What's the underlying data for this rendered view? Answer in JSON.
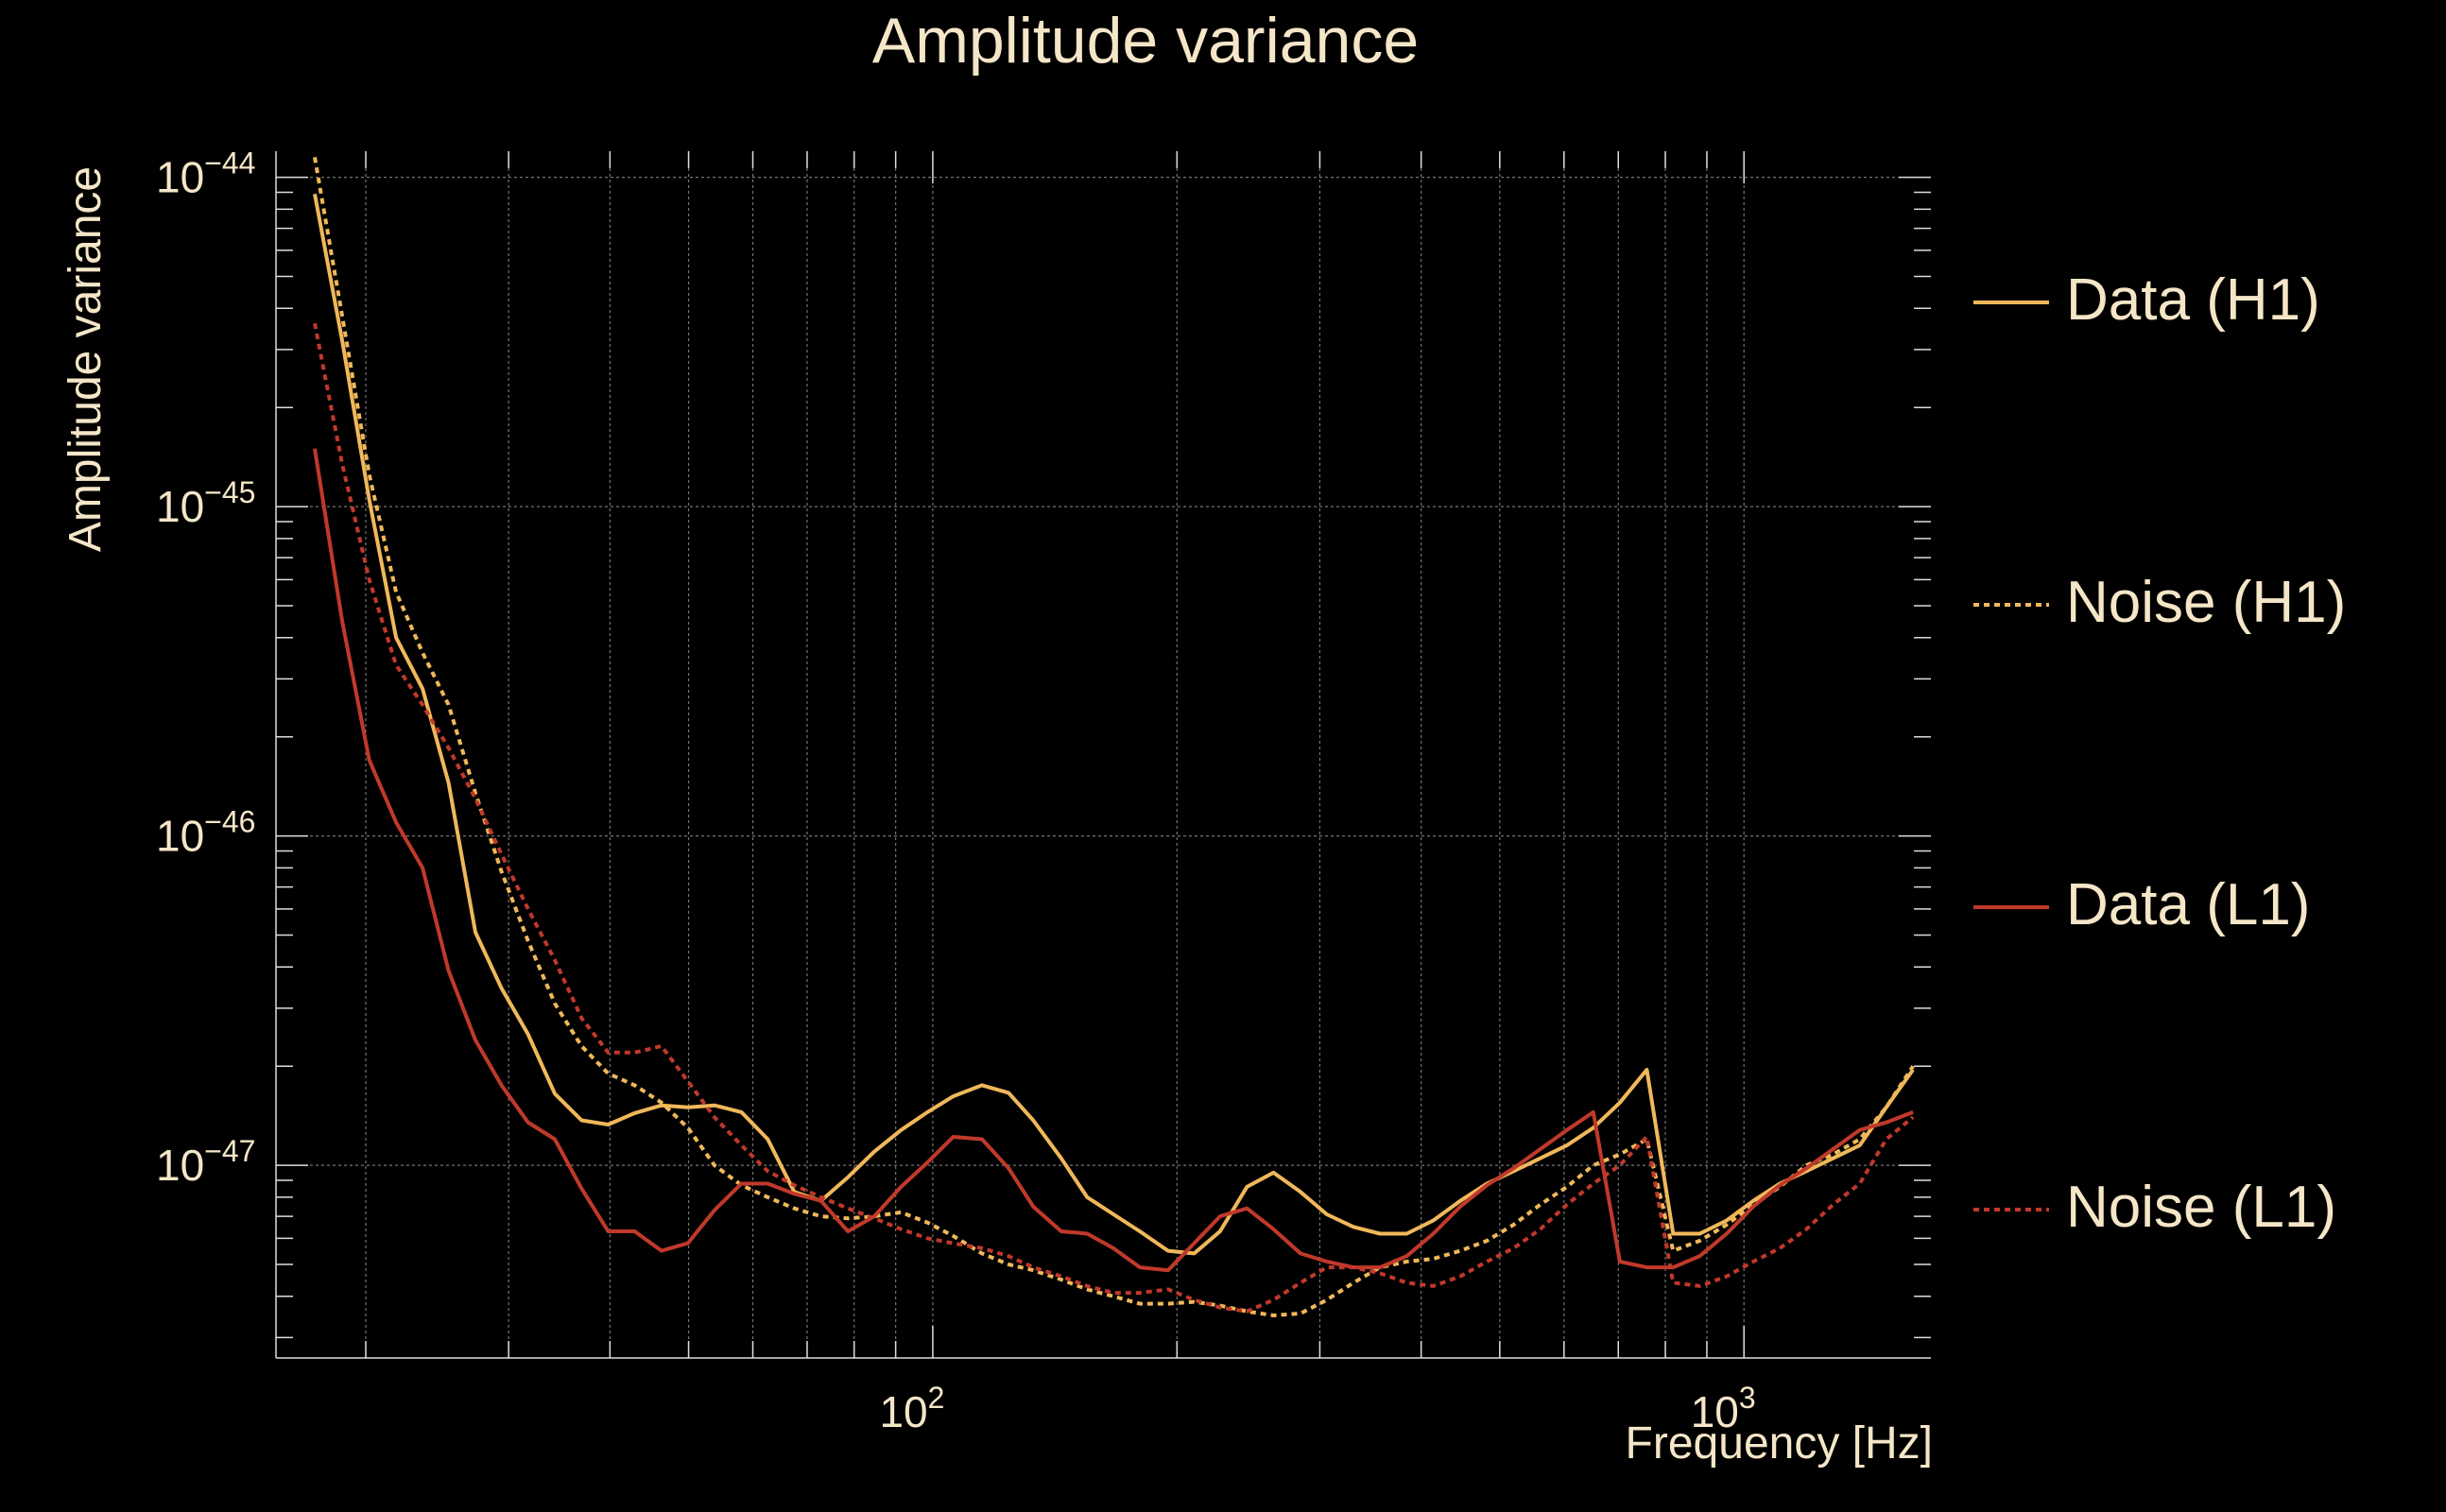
{
  "chart_data": {
    "type": "line",
    "title": "Amplitude variance",
    "xlabel": "Frequency [Hz]",
    "ylabel": "Amplitude variance",
    "xscale": "log",
    "yscale": "log",
    "xlim": [
      15.5,
      1700
    ],
    "ylim": [
      2.6e-48,
      1.2e-44
    ],
    "grid": true,
    "legend_position": "right",
    "xtick_labels": [
      {
        "base": "10",
        "exp": "2",
        "value": 100
      },
      {
        "base": "10",
        "exp": "3",
        "value": 1000
      }
    ],
    "ytick_labels": [
      {
        "base": "10",
        "exp": "−44",
        "value": 1e-44
      },
      {
        "base": "10",
        "exp": "−45",
        "value": 1e-45
      },
      {
        "base": "10",
        "exp": "−46",
        "value": 1e-46
      },
      {
        "base": "10",
        "exp": "−47",
        "value": 1e-47
      }
    ],
    "series": [
      {
        "name": "Data (H1)",
        "color": "#f0b85a",
        "dash": "solid",
        "x": [
          17.3,
          18.7,
          20.2,
          21.8,
          23.5,
          25.3,
          27.3,
          29.4,
          31.7,
          34.2,
          36.9,
          39.8,
          42.9,
          46.3,
          49.9,
          53.8,
          58.1,
          62.6,
          67.5,
          72.8,
          78.6,
          84.7,
          91.4,
          98.5,
          106,
          115,
          124,
          133,
          144,
          155,
          167,
          180,
          195,
          210,
          226,
          244,
          263,
          284,
          306,
          330,
          356,
          384,
          414,
          447,
          482,
          520,
          561,
          605,
          652,
          703,
          759,
          818,
          882,
          952,
          1027,
          1107,
          1194,
          1288,
          1389,
          1498,
          1616
        ],
        "y": [
          8.9e-45,
          3.2e-45,
          1.05e-45,
          4e-46,
          2.8e-46,
          1.45e-46,
          5.1e-47,
          3.45e-47,
          2.5e-47,
          1.65e-47,
          1.37e-47,
          1.33e-47,
          1.44e-47,
          1.52e-47,
          1.5e-47,
          1.52e-47,
          1.45e-47,
          1.2e-47,
          8.3e-48,
          7.8e-48,
          9.2e-48,
          1.1e-47,
          1.28e-47,
          1.45e-47,
          1.62e-47,
          1.75e-47,
          1.66e-47,
          1.37e-47,
          1.05e-47,
          8e-48,
          7.1e-48,
          6.3e-48,
          5.5e-48,
          5.4e-48,
          6.3e-48,
          8.6e-48,
          9.5e-48,
          8.3e-48,
          7.1e-48,
          6.5e-48,
          6.2e-48,
          6.2e-48,
          6.8e-48,
          7.8e-48,
          8.8e-48,
          9.6e-48,
          1.05e-47,
          1.15e-47,
          1.3e-47,
          1.55e-47,
          1.95e-47,
          6.2e-48,
          6.2e-48,
          6.8e-48,
          7.8e-48,
          8.8e-48,
          9.6e-48,
          1.05e-47,
          1.15e-47,
          1.5e-47,
          1.95e-47
        ]
      },
      {
        "name": "Noise (H1)",
        "color": "#f0b85a",
        "dash": "dotted",
        "x": [
          17.3,
          18.7,
          20.2,
          21.8,
          23.5,
          25.3,
          27.3,
          29.4,
          31.7,
          34.2,
          36.9,
          39.8,
          42.9,
          46.3,
          49.9,
          53.8,
          58.1,
          62.6,
          67.5,
          72.8,
          78.6,
          84.7,
          91.4,
          98.5,
          106,
          115,
          124,
          133,
          144,
          155,
          167,
          180,
          195,
          210,
          226,
          244,
          263,
          284,
          306,
          330,
          356,
          384,
          414,
          447,
          482,
          520,
          561,
          605,
          652,
          703,
          759,
          818,
          882,
          952,
          1027,
          1107,
          1194,
          1288,
          1389,
          1498,
          1616
        ],
        "y": [
          1.15e-44,
          3.8e-45,
          1.25e-45,
          5.5e-46,
          3.6e-46,
          2.5e-46,
          1.35e-46,
          7.8e-47,
          4.8e-47,
          3.1e-47,
          2.3e-47,
          1.9e-47,
          1.75e-47,
          1.55e-47,
          1.3e-47,
          1e-47,
          8.7e-48,
          8e-48,
          7.4e-48,
          7e-48,
          6.9e-48,
          7e-48,
          7.2e-48,
          6.7e-48,
          6.1e-48,
          5.4e-48,
          5e-48,
          4.8e-48,
          4.5e-48,
          4.2e-48,
          4e-48,
          3.8e-48,
          3.8e-48,
          3.85e-48,
          3.75e-48,
          3.6e-48,
          3.5e-48,
          3.55e-48,
          3.9e-48,
          4.4e-48,
          4.9e-48,
          5.1e-48,
          5.2e-48,
          5.5e-48,
          5.9e-48,
          6.6e-48,
          7.6e-48,
          8.6e-48,
          1e-47,
          1.08e-47,
          1.2e-47,
          5.5e-48,
          5.9e-48,
          6.6e-48,
          7.6e-48,
          8.6e-48,
          1e-47,
          1.08e-47,
          1.2e-47,
          1.5e-47,
          2e-47
        ]
      },
      {
        "name": "Data (L1)",
        "color": "#c0392b",
        "dash": "solid",
        "x": [
          17.3,
          18.7,
          20.2,
          21.8,
          23.5,
          25.3,
          27.3,
          29.4,
          31.7,
          34.2,
          36.9,
          39.8,
          42.9,
          46.3,
          49.9,
          53.8,
          58.1,
          62.6,
          67.5,
          72.8,
          78.6,
          84.7,
          91.4,
          98.5,
          106,
          115,
          124,
          133,
          144,
          155,
          167,
          180,
          195,
          210,
          226,
          244,
          263,
          284,
          306,
          330,
          356,
          384,
          414,
          447,
          482,
          520,
          561,
          605,
          652,
          703,
          759,
          818,
          882,
          952,
          1027,
          1107,
          1194,
          1288,
          1389,
          1498,
          1616
        ],
        "y": [
          1.5e-45,
          4.5e-46,
          1.7e-46,
          1.1e-46,
          8e-47,
          3.9e-47,
          2.4e-47,
          1.75e-47,
          1.35e-47,
          1.2e-47,
          8.5e-48,
          6.3e-48,
          6.3e-48,
          5.5e-48,
          5.8e-48,
          7.3e-48,
          8.8e-48,
          8.8e-48,
          8.2e-48,
          7.8e-48,
          6.3e-48,
          7e-48,
          8.6e-48,
          1.02e-47,
          1.22e-47,
          1.2e-47,
          9.8e-48,
          7.5e-48,
          6.3e-48,
          6.2e-48,
          5.6e-48,
          4.9e-48,
          4.8e-48,
          5.8e-48,
          7e-48,
          7.4e-48,
          6.4e-48,
          5.4e-48,
          5.1e-48,
          4.9e-48,
          4.9e-48,
          5.3e-48,
          6.2e-48,
          7.5e-48,
          8.7e-48,
          9.8e-48,
          1.12e-47,
          1.28e-47,
          1.45e-47,
          5.1e-48,
          4.9e-48,
          4.9e-48,
          5.3e-48,
          6.2e-48,
          7.5e-48,
          8.7e-48,
          9.8e-48,
          1.12e-47,
          1.28e-47,
          1.35e-47,
          1.45e-47
        ]
      },
      {
        "name": "Noise (L1)",
        "color": "#c0392b",
        "dash": "dotted",
        "x": [
          17.3,
          18.7,
          20.2,
          21.8,
          23.5,
          25.3,
          27.3,
          29.4,
          31.7,
          34.2,
          36.9,
          39.8,
          42.9,
          46.3,
          49.9,
          53.8,
          58.1,
          62.6,
          67.5,
          72.8,
          78.6,
          84.7,
          91.4,
          98.5,
          106,
          115,
          124,
          133,
          144,
          155,
          167,
          180,
          195,
          210,
          226,
          244,
          263,
          284,
          306,
          330,
          356,
          384,
          414,
          447,
          482,
          520,
          561,
          605,
          652,
          703,
          759,
          818,
          882,
          952,
          1027,
          1107,
          1194,
          1288,
          1389,
          1498,
          1616
        ],
        "y": [
          3.6e-45,
          1.35e-45,
          6e-46,
          3.3e-46,
          2.5e-46,
          1.85e-46,
          1.3e-46,
          8.8e-47,
          6e-47,
          4.2e-47,
          2.8e-47,
          2.2e-47,
          2.2e-47,
          2.3e-47,
          1.8e-47,
          1.4e-47,
          1.15e-47,
          9.6e-48,
          8.7e-48,
          8e-48,
          7.4e-48,
          6.9e-48,
          6.4e-48,
          6e-48,
          5.8e-48,
          5.6e-48,
          5.3e-48,
          4.9e-48,
          4.6e-48,
          4.3e-48,
          4.1e-48,
          4.1e-48,
          4.2e-48,
          3.9e-48,
          3.7e-48,
          3.6e-48,
          3.9e-48,
          4.4e-48,
          4.9e-48,
          4.9e-48,
          4.7e-48,
          4.4e-48,
          4.3e-48,
          4.6e-48,
          5.1e-48,
          5.6e-48,
          6.4e-48,
          7.6e-48,
          8.8e-48,
          1e-47,
          1.22e-47,
          4.4e-48,
          4.3e-48,
          4.6e-48,
          5.1e-48,
          5.6e-48,
          6.4e-48,
          7.6e-48,
          8.8e-48,
          1.2e-47,
          1.4e-47
        ]
      }
    ]
  }
}
